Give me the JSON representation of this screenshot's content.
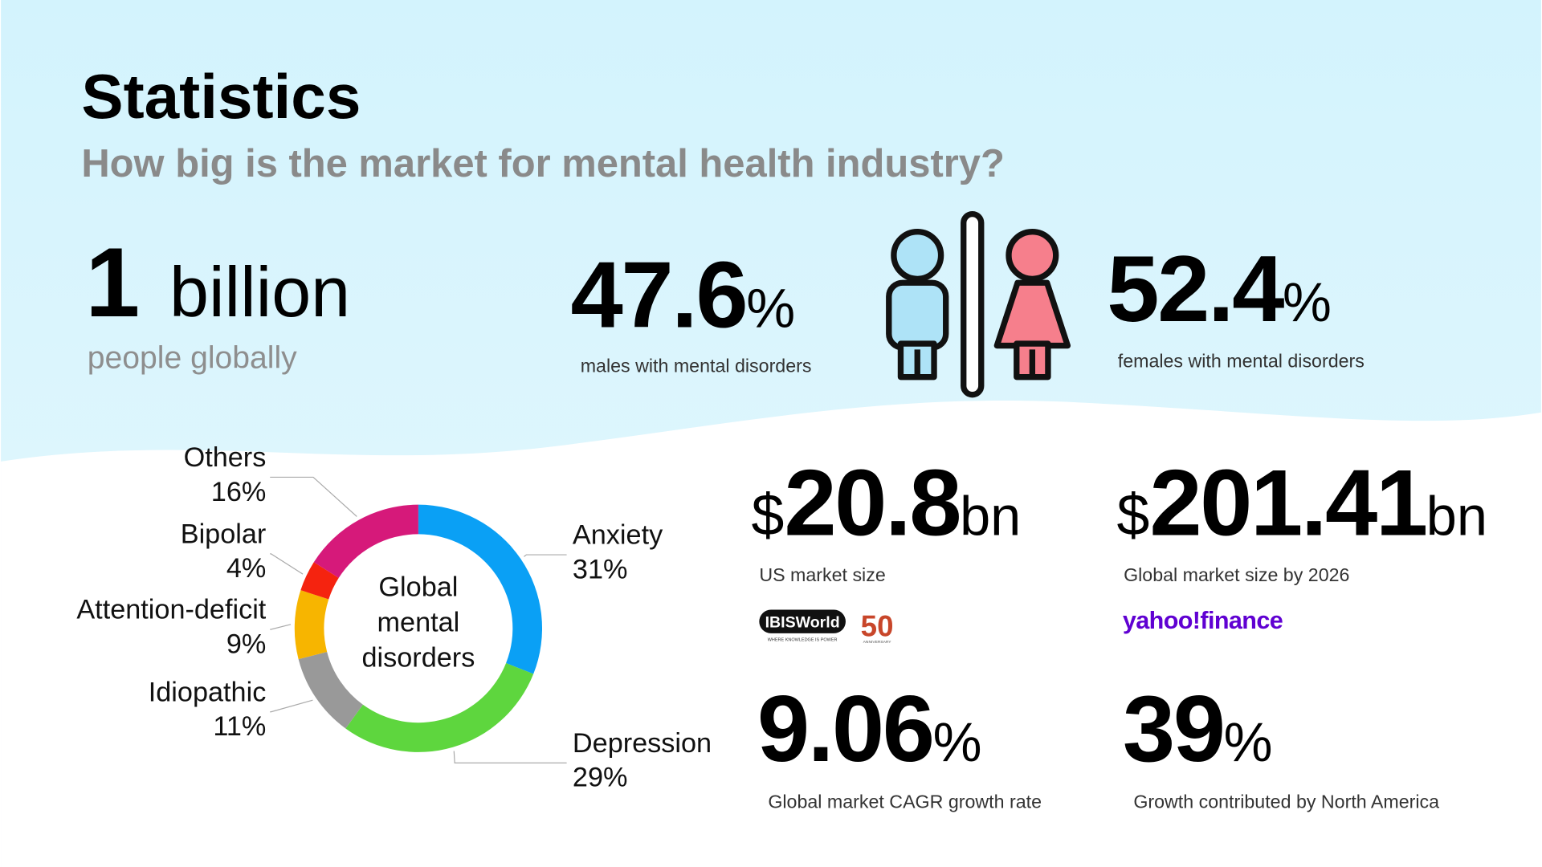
{
  "title": "Statistics",
  "subtitle": "How big is the market for mental health industry?",
  "headline": {
    "number": "1",
    "unit": "billion",
    "label": "people globally"
  },
  "stats": [
    {
      "number": "47.6",
      "unit": "%",
      "label": "males with mental disorders"
    },
    {
      "number": "52.4",
      "unit": "%",
      "label": "females with mental disorders"
    },
    {
      "prefix": "$",
      "number": "20.8",
      "unit": "bn",
      "label": "US market size"
    },
    {
      "prefix": "$",
      "number": "201.41",
      "unit": "bn",
      "label": "Global market size by 2026"
    },
    {
      "number": "9.06",
      "unit": "%",
      "label": "Global market CAGR growth rate"
    },
    {
      "number": "39",
      "unit": "%",
      "label": "Growth contributed by North America"
    }
  ],
  "sources": {
    "ibisworld": {
      "name": "IBISWorld",
      "tagline": "WHERE KNOWLEDGE IS POWER",
      "badge": "50",
      "badge_label": "ANNIVERSARY"
    },
    "yahoo": "yahoo!finance"
  },
  "chart_data": {
    "type": "pie",
    "center_label": "Global mental disorders",
    "categories": [
      "Anxiety",
      "Depression",
      "Idiopathic",
      "Attention-deficit",
      "Bipolar",
      "Others"
    ],
    "values": [
      31,
      29,
      11,
      9,
      4,
      16
    ],
    "value_labels": [
      "31%",
      "29%",
      "11%",
      "9%",
      "4%",
      "16%"
    ],
    "colors": [
      "#0aa0f5",
      "#5ed63e",
      "#999999",
      "#f7b500",
      "#f5230f",
      "#d6197a"
    ]
  }
}
